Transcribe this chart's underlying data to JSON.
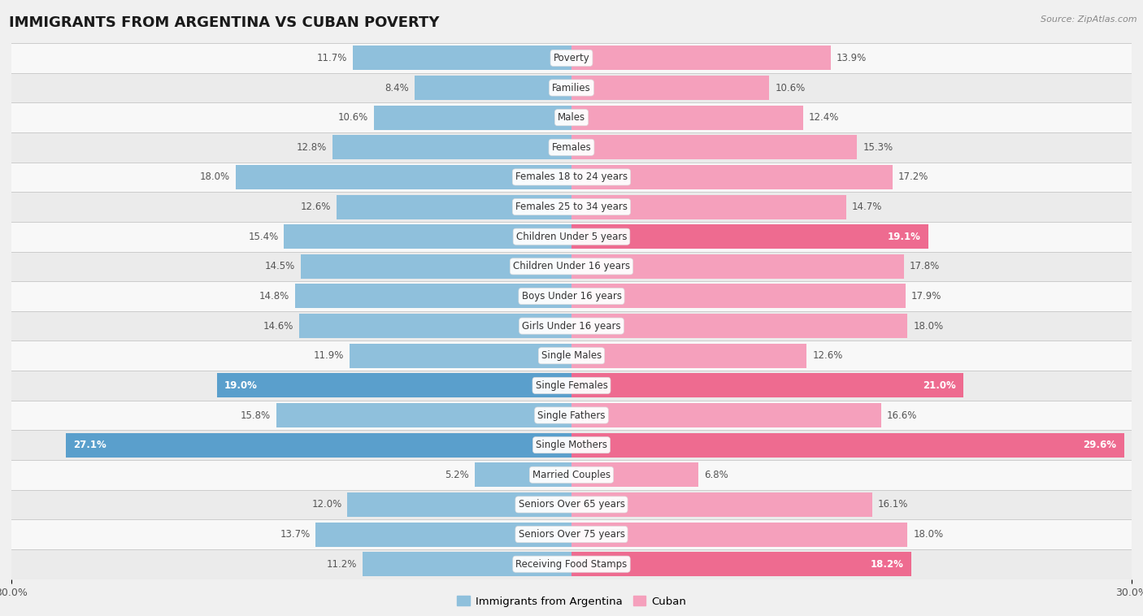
{
  "title": "IMMIGRANTS FROM ARGENTINA VS CUBAN POVERTY",
  "source": "Source: ZipAtlas.com",
  "categories": [
    "Poverty",
    "Families",
    "Males",
    "Females",
    "Females 18 to 24 years",
    "Females 25 to 34 years",
    "Children Under 5 years",
    "Children Under 16 years",
    "Boys Under 16 years",
    "Girls Under 16 years",
    "Single Males",
    "Single Females",
    "Single Fathers",
    "Single Mothers",
    "Married Couples",
    "Seniors Over 65 years",
    "Seniors Over 75 years",
    "Receiving Food Stamps"
  ],
  "argentina_values": [
    11.7,
    8.4,
    10.6,
    12.8,
    18.0,
    12.6,
    15.4,
    14.5,
    14.8,
    14.6,
    11.9,
    19.0,
    15.8,
    27.1,
    5.2,
    12.0,
    13.7,
    11.2
  ],
  "cuban_values": [
    13.9,
    10.6,
    12.4,
    15.3,
    17.2,
    14.7,
    19.1,
    17.8,
    17.9,
    18.0,
    12.6,
    21.0,
    16.6,
    29.6,
    6.8,
    16.1,
    18.0,
    18.2
  ],
  "argentina_color": "#8fc0dc",
  "cuban_color": "#f5a0bc",
  "argentina_highlight_color": "#5a9fcc",
  "cuban_highlight_color": "#ee6b90",
  "background_color": "#f0f0f0",
  "row_even_color": "#f8f8f8",
  "row_odd_color": "#ebebeb",
  "row_separator_color": "#cccccc",
  "label_bg_color": "#ffffff",
  "xlim": 30.0,
  "bar_height": 0.82,
  "title_fontsize": 13,
  "label_fontsize": 8.5,
  "value_fontsize": 8.5,
  "legend_fontsize": 9.5,
  "highlight_indices_arg": [
    11,
    13
  ],
  "highlight_indices_cub": [
    6,
    11,
    13,
    17
  ]
}
